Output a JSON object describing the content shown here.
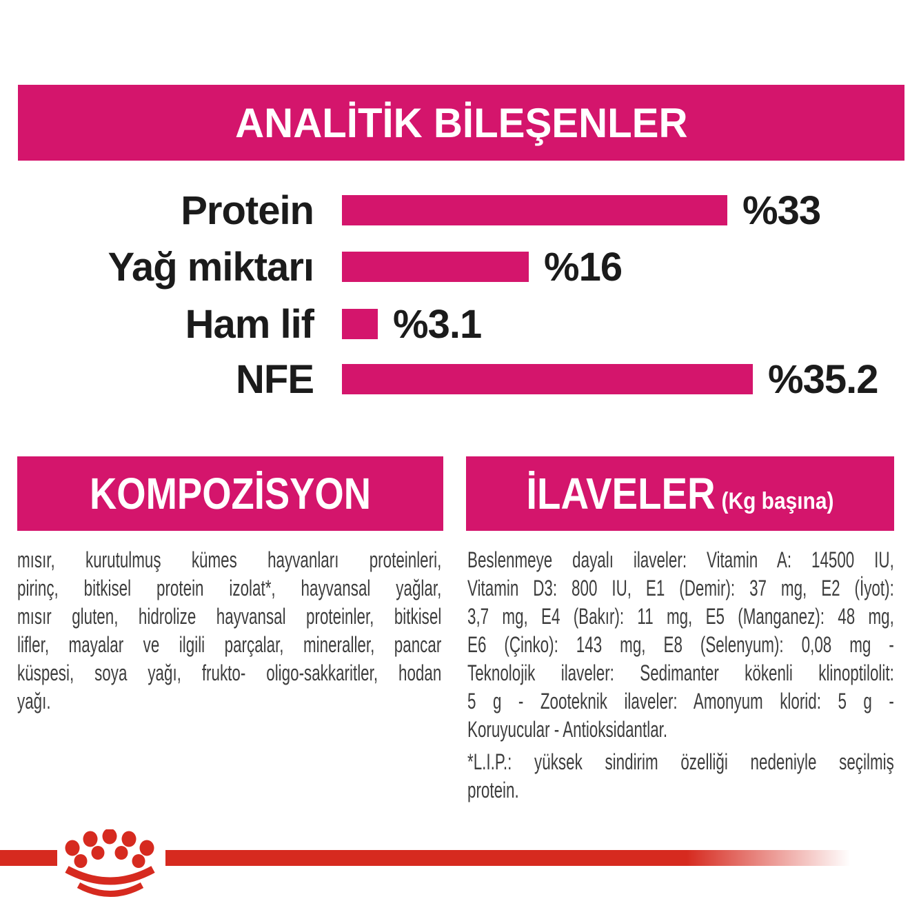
{
  "colors": {
    "magenta": "#D4156C",
    "red": "#D62A1F",
    "text_dark": "#1B1B1B",
    "text_body": "#3D3D3D"
  },
  "header": {
    "title": "ANALİTİK BİLEŞENLER"
  },
  "chart_data": {
    "type": "bar",
    "orientation": "horizontal",
    "title": "ANALİTİK BİLEŞENLER",
    "categories": [
      "Protein",
      "Yağ miktarı",
      "Ham lif",
      "NFE"
    ],
    "values": [
      33,
      16,
      3.1,
      35.2
    ],
    "value_labels": [
      "%33",
      "%16",
      "%3.1",
      "%35.2"
    ],
    "unit": "percent",
    "bar_color": "#D4156C",
    "xlim": [
      0,
      36.5
    ],
    "grid": false,
    "legend": false
  },
  "sections": {
    "composition": {
      "title": "KOMPOZİSYON",
      "lines": [
        "mısır, kurutulmuş kümes hayvanları proteinleri,",
        "pirinç, bitkisel protein izolat*, hayvansal yağlar,",
        "mısır gluten, hidrolize hayvansal proteinler, bitkisel",
        "lifler, mayalar ve ilgili parçalar, mineraller, pancar",
        "küspesi, soya yağı, frukto- oligo-sakkaritler, hodan",
        "yağı."
      ]
    },
    "additives": {
      "title": "İLAVELER",
      "title_suffix": "(Kg başına)",
      "lines": [
        "Beslenmeye dayalı ilaveler: Vitamin A: 14500 IU,",
        "Vitamin D3: 800 IU, E1 (Demir): 37 mg, E2 (İyot):",
        "3,7 mg, E4 (Bakır): 11 mg, E5 (Manganez): 48 mg,",
        "E6 (Çinko): 143 mg, E8 (Selenyum): 0,08 mg -",
        "Teknolojik ilaveler: Sedimanter kökenli klinoptilolit:",
        "5 g - Zooteknik ilaveler: Amonyum klorid: 5 g -",
        "Koruyucular - Antioksidantlar."
      ],
      "footnote_lines": [
        "*L.I.P.: yüksek sindirim özelliği nedeniyle seçilmiş",
        "protein."
      ]
    }
  },
  "footer": {
    "logo": "royal-canin-crown-paw-logo"
  }
}
